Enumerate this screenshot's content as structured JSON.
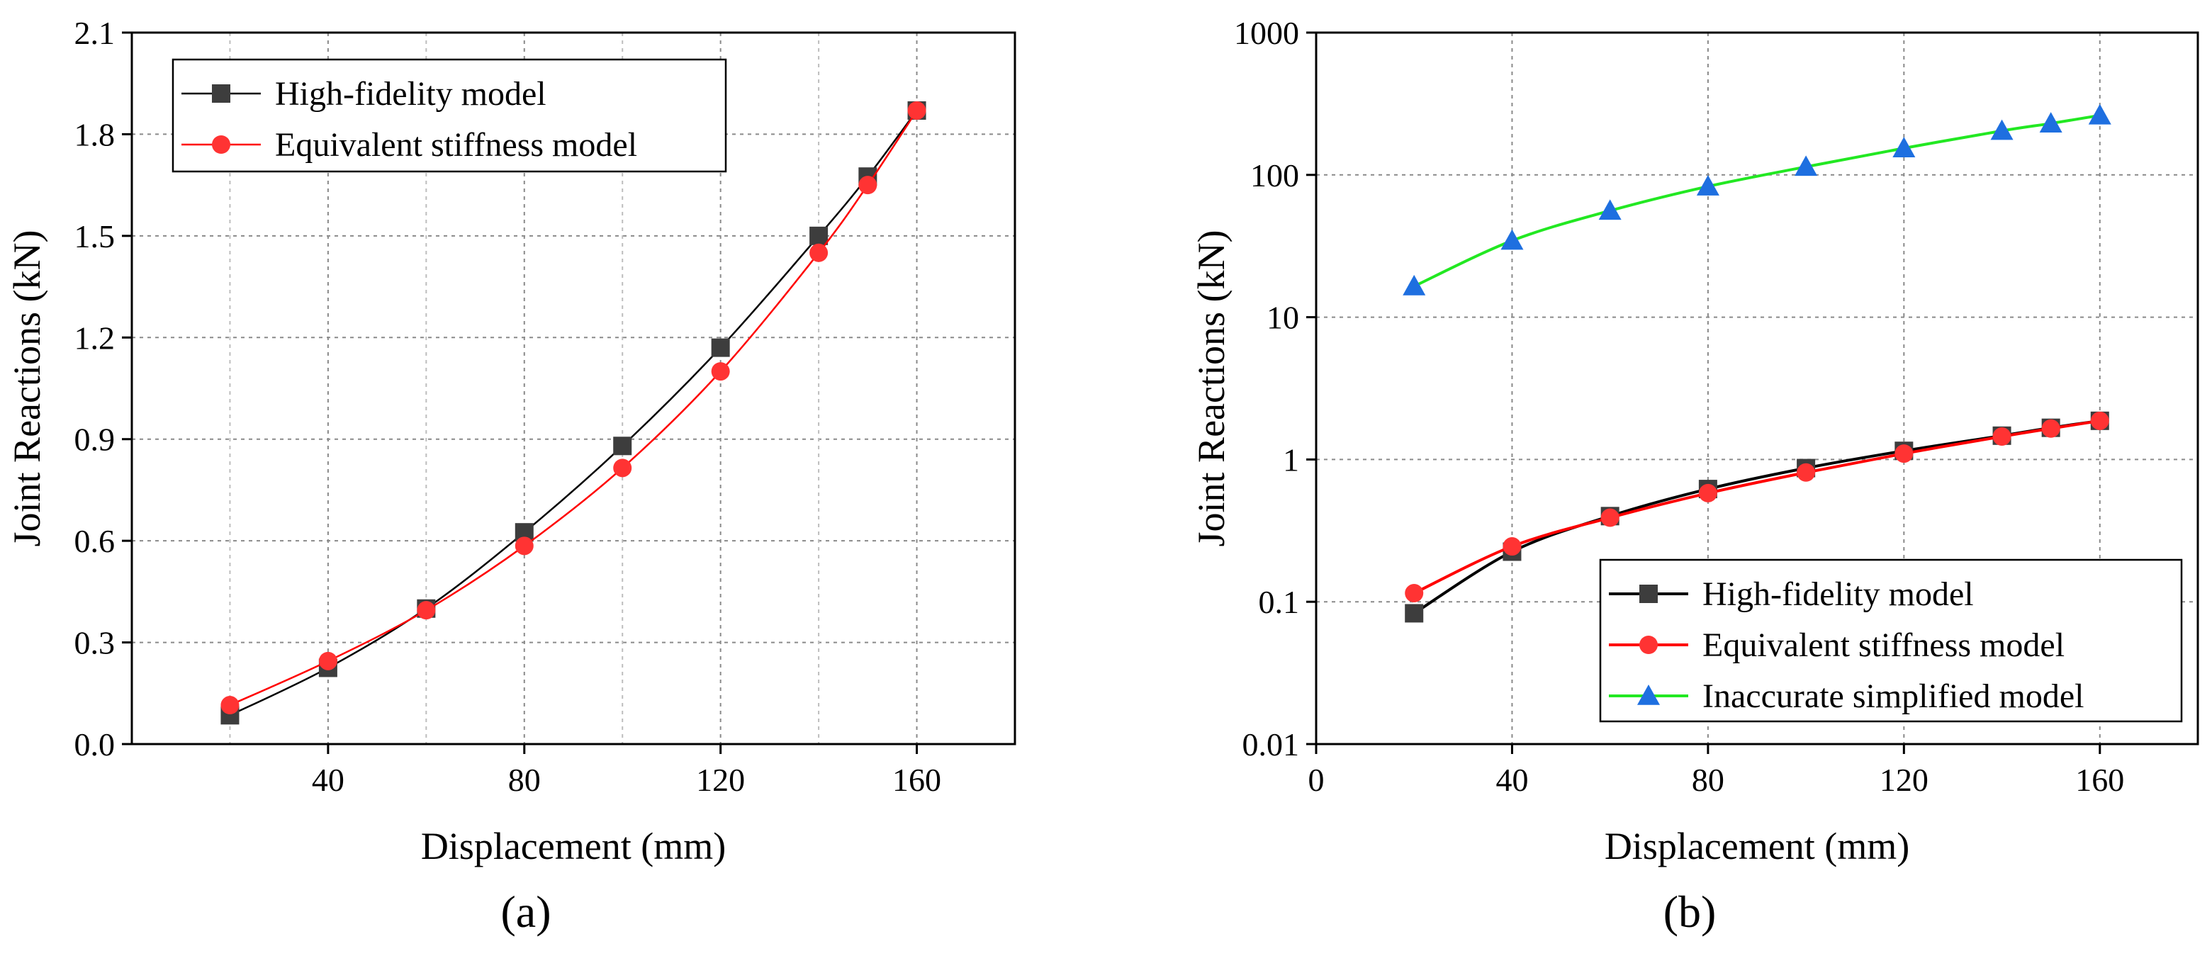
{
  "chart_data": [
    {
      "type": "line",
      "panel_label": "(a)",
      "xlabel": "Displacement (mm)",
      "ylabel": "Joint Reactions (kN)",
      "xlim": [
        0,
        180
      ],
      "ylim": [
        0,
        2.1
      ],
      "xticks": [
        40,
        80,
        120,
        160
      ],
      "xtick_labels": [
        "40",
        "80",
        "120",
        "160"
      ],
      "yticks": [
        0,
        0.3,
        0.6,
        0.9,
        1.2,
        1.5,
        1.8,
        2.1
      ],
      "ytick_labels": [
        "0.0",
        "0.3",
        "0.6",
        "0.9",
        "1.2",
        "1.5",
        "1.8",
        "2.1"
      ],
      "grid": true,
      "legend_position": "top-left",
      "series": [
        {
          "name": "High-fidelity model",
          "color": "#000000",
          "marker_color": "#3d3d3d",
          "marker": "square",
          "x": [
            20,
            40,
            60,
            80,
            100,
            120,
            140,
            150,
            160
          ],
          "y": [
            0.085,
            0.225,
            0.4,
            0.625,
            0.88,
            1.17,
            1.5,
            1.675,
            1.87
          ]
        },
        {
          "name": "Equivalent stiffness model",
          "color": "#ff0000",
          "marker_color": "#ff3333",
          "marker": "circle",
          "x": [
            20,
            40,
            60,
            80,
            100,
            120,
            140,
            150,
            160
          ],
          "y": [
            0.115,
            0.245,
            0.395,
            0.585,
            0.815,
            1.1,
            1.45,
            1.65,
            1.87
          ]
        }
      ]
    },
    {
      "type": "line",
      "panel_label": "(b)",
      "xlabel": "Displacement (mm)",
      "ylabel": "Joint Reactions (kN)",
      "xlim": [
        0,
        180
      ],
      "ylim": [
        0.01,
        1000
      ],
      "yscale": "log",
      "xticks": [
        0,
        40,
        80,
        120,
        160
      ],
      "xtick_labels": [
        "0",
        "40",
        "80",
        "120",
        "160"
      ],
      "yticks": [
        0.01,
        0.1,
        1,
        10,
        100,
        1000
      ],
      "ytick_labels": [
        "0.01",
        "0.1",
        "1",
        "10",
        "100",
        "1000"
      ],
      "grid": true,
      "legend_position": "bottom-right",
      "series": [
        {
          "name": "High-fidelity model",
          "color": "#000000",
          "marker_color": "#3d3d3d",
          "marker": "square",
          "x": [
            20,
            40,
            60,
            80,
            100,
            120,
            140,
            150,
            160
          ],
          "y": [
            0.083,
            0.225,
            0.4,
            0.62,
            0.87,
            1.15,
            1.47,
            1.67,
            1.87
          ]
        },
        {
          "name": "Equivalent stiffness model",
          "color": "#ff0000",
          "marker_color": "#ff3333",
          "marker": "circle",
          "x": [
            20,
            40,
            60,
            80,
            100,
            120,
            140,
            150,
            160
          ],
          "y": [
            0.115,
            0.245,
            0.39,
            0.58,
            0.81,
            1.1,
            1.45,
            1.65,
            1.87
          ]
        },
        {
          "name": "Inaccurate simplified model",
          "color": "#22e822",
          "marker_color": "#1e6fe0",
          "marker": "triangle",
          "x": [
            20,
            40,
            60,
            80,
            100,
            120,
            140,
            150,
            160
          ],
          "y": [
            16.5,
            34.5,
            56,
            83,
            114,
            154,
            204,
            230,
            262
          ]
        }
      ]
    }
  ]
}
